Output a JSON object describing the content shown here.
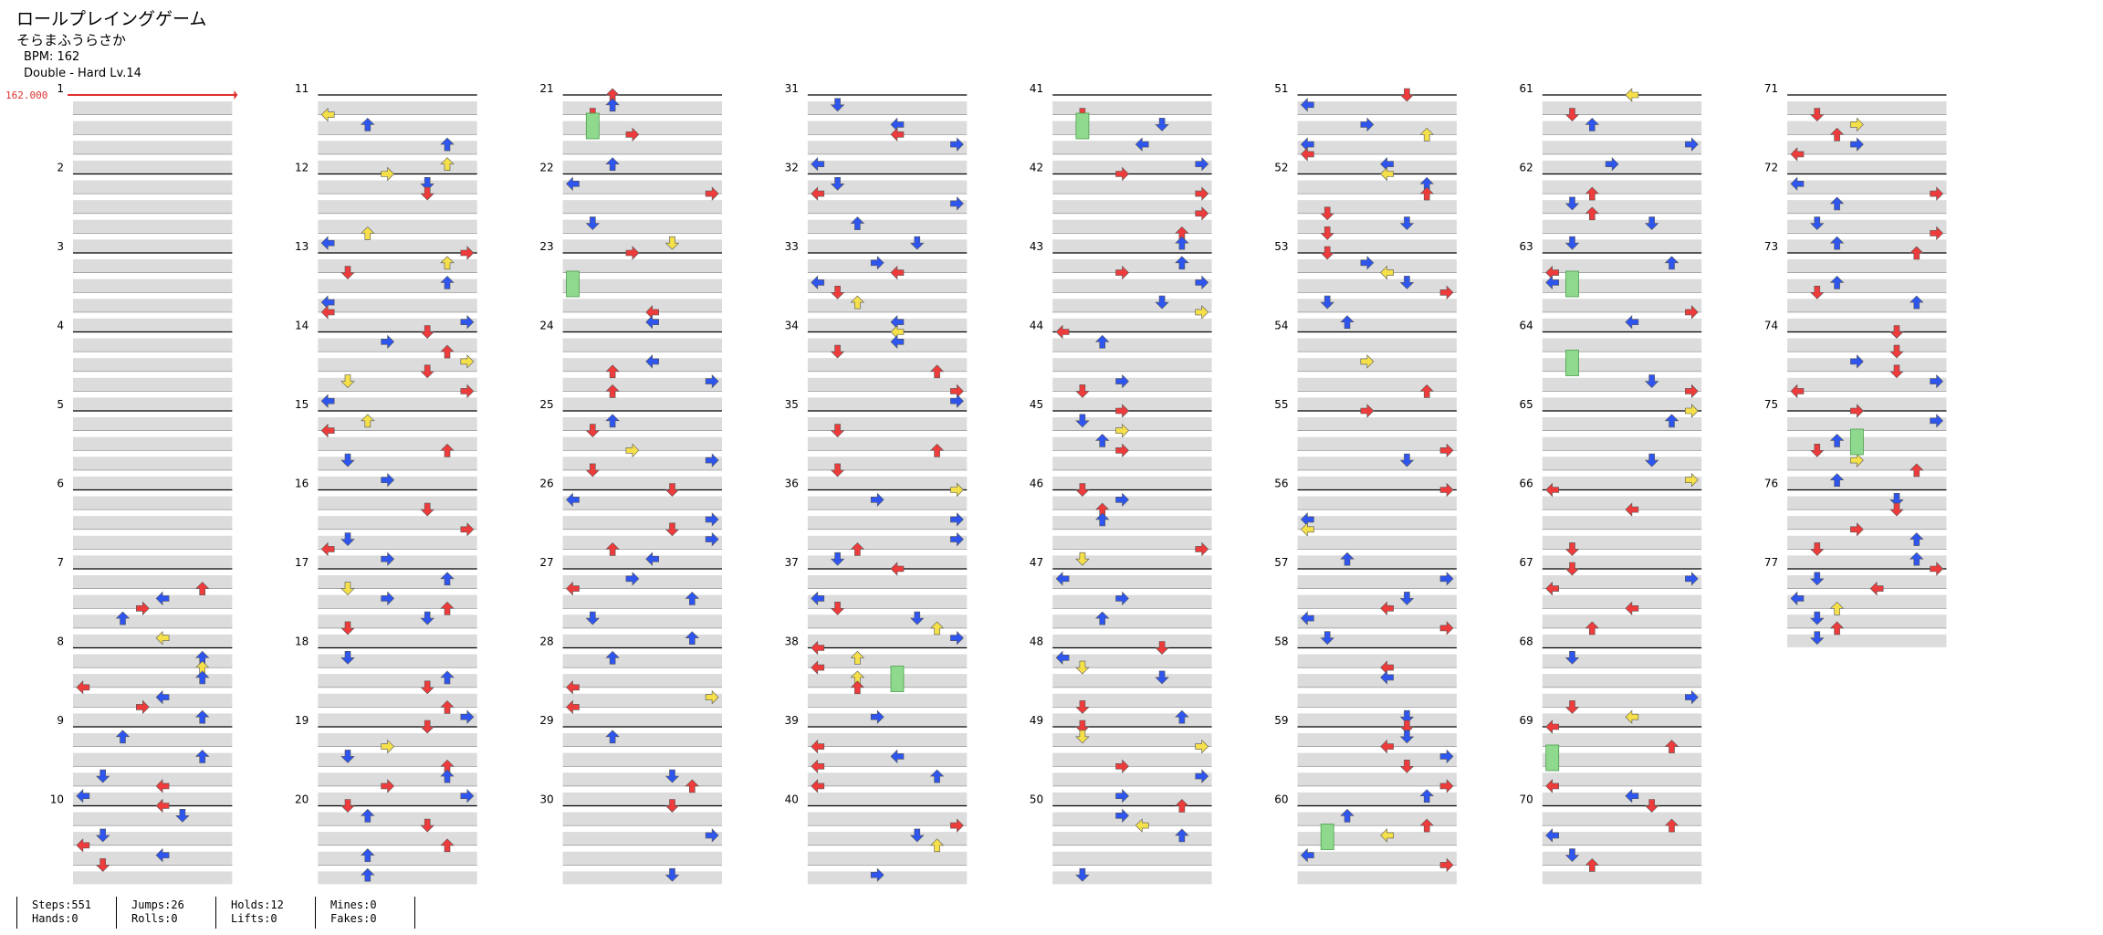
{
  "song": {
    "title": "ロールプレイングゲーム",
    "artist": "そらまふうらさか",
    "bpm_text": "BPM: 162",
    "difficulty_text": "Double - Hard  Lv.14"
  },
  "bpm_marker": {
    "label": "162.000",
    "color": "#e03030"
  },
  "colors": {
    "red": "#ee3b3b",
    "blue": "#2e55ee",
    "yellow": "#f5e04a",
    "hold": "#8ed98e",
    "band": "#dcdcdc"
  },
  "chart_data": {
    "type": "table",
    "total_measures": 77,
    "columns": 8,
    "measures_per_column": 10,
    "lanes": 8,
    "rows_per_measure": 4
  },
  "stats": [
    {
      "line1": "Steps:551",
      "line2": "Hands:0"
    },
    {
      "line1": "Jumps:26",
      "line2": "Rolls:0"
    },
    {
      "line1": "Holds:12",
      "line2": "Lifts:0"
    },
    {
      "line1": "Mines:0",
      "line2": "Fakes:0"
    }
  ]
}
